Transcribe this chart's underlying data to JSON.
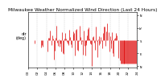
{
  "title": "Milwaukee Weather Normalized Wind Direction (Last 24 Hours)",
  "ylabel_left": "dir\n(deg)",
  "ytick_vals": [
    0,
    90,
    180,
    270,
    360
  ],
  "ytick_labels_right": [
    "N",
    "E",
    "S",
    "W",
    "N"
  ],
  "ylim": [
    -10,
    380
  ],
  "xlim": [
    0,
    144
  ],
  "bar_color": "#dd0000",
  "background_color": "#ffffff",
  "grid_color": "#999999",
  "title_fontsize": 4.2,
  "axis_fontsize": 3.5,
  "tick_label_fontsize": 3.0,
  "n_points": 144,
  "seed": 42,
  "sparse_start": 0,
  "sparse_end": 26,
  "active_start": 26,
  "active_end": 118,
  "flat_start": 122,
  "flat_value": 18,
  "isolated_indices": [
    119,
    121,
    127,
    128
  ],
  "isolated_values": [
    60,
    40,
    25,
    22
  ]
}
